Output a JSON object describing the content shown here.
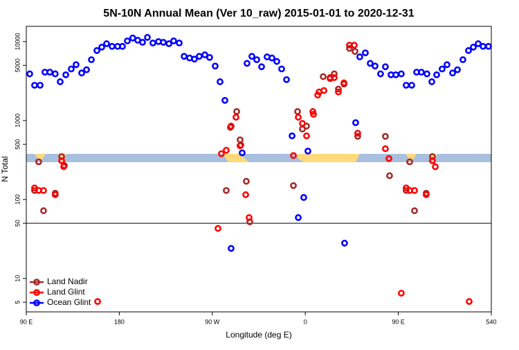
{
  "chart_data": {
    "type": "scatter",
    "title": "5N-10N Annual Mean (Ver 10_raw)   2015-01-01 to 2020-12-31",
    "x_label": "Longitude (deg E)",
    "y_label": "N Total",
    "log_y": true,
    "legend": "bottom-left",
    "hlines": [
      50
    ],
    "xlim": [
      90,
      540
    ],
    "ylim": [
      3.77,
      15600
    ],
    "xticks": [
      {
        "value": 90,
        "label": "90 E"
      },
      180,
      {
        "value": 270,
        "label": "90 W"
      },
      {
        "value": 360,
        "label": "0"
      },
      {
        "value": 450,
        "label": "90 E"
      },
      540
    ],
    "yticks": [
      5,
      10,
      50,
      100,
      500,
      1000,
      5000,
      10000
    ],
    "series": [
      {
        "name": "Land Nadir",
        "color": "#a52a2a",
        "x": [
          102,
          98,
          106.7,
          118,
          124.2,
          126.8,
          283.5,
          287.5,
          293.6,
          296.9,
          297.6,
          302.9,
          306.3,
          348.5,
          352.5,
          357.2,
          361.2,
          377.3,
          384,
          388,
          392,
          397.4,
          402.7,
          408.1,
          410.7,
          437.5,
          441.5,
          461,
          457.6,
          465.7,
          477,
          483
        ],
        "values": [
          300,
          130,
          72,
          120,
          350,
          270,
          130,
          820,
          1300,
          570,
          490,
          170,
          52,
          150,
          1300,
          780,
          850,
          3600,
          3400,
          3900,
          2500,
          2900,
          8200,
          7500,
          630,
          630,
          200,
          300,
          130,
          72,
          120,
          350
        ]
      },
      {
        "name": "Land Glint",
        "color": "#ff0000",
        "x": [
          98,
          102,
          106.7,
          118,
          124.2,
          126.2,
          159,
          275.5,
          278.8,
          283.5,
          288.2,
          292.9,
          296.9,
          302.3,
          305.6,
          348.5,
          353.2,
          357.2,
          361.2,
          367.3,
          367.9,
          372,
          373.3,
          378,
          384,
          388,
          392,
          397.4,
          402.7,
          407.4,
          410.7,
          437.5,
          440.9,
          452.9,
          457.6,
          461,
          465.7,
          477,
          483,
          485.8,
          518.6
        ],
        "values": [
          140,
          130,
          130,
          115,
          310,
          260,
          5.1,
          43,
          380,
          420,
          850,
          1100,
          480,
          115,
          59,
          360,
          1100,
          920,
          640,
          1300,
          1200,
          2100,
          2300,
          2400,
          3500,
          3500,
          2300,
          3000,
          9000,
          9000,
          690,
          440,
          330,
          6.5,
          140,
          130,
          130,
          115,
          310,
          260,
          5.1
        ]
      },
      {
        "name": "Ocean Glint",
        "color": "#0000ff",
        "x": [
          93.3,
          98,
          103.4,
          108,
          112.8,
          118,
          122.8,
          128.2,
          133.5,
          138.2,
          143.6,
          148.3,
          153,
          158.3,
          163,
          167.7,
          173,
          178.4,
          183,
          187.8,
          193,
          197.8,
          202.5,
          207.2,
          212.5,
          217.9,
          222.6,
          228,
          232.6,
          238,
          242.7,
          248,
          252.7,
          257.4,
          262.8,
          267.4,
          272.8,
          277.5,
          282.2,
          288.2,
          298.9,
          303.6,
          308.3,
          313,
          317.7,
          323,
          327.7,
          332.4,
          337.1,
          341.8,
          347.2,
          353.2,
          358.5,
          362.5,
          398,
          408.7,
          412.7,
          418.1,
          422.8,
          427.5,
          432.8,
          437.5,
          442.9,
          447.6,
          452.9,
          457.6,
          463,
          467.7,
          472.3,
          477.7,
          482.4,
          487.1,
          492.4,
          497.1,
          502.5,
          507.2,
          512.5,
          517.9,
          522.6,
          527.3,
          532,
          537.3
        ],
        "values": [
          3900,
          2800,
          2800,
          4100,
          4100,
          3900,
          3100,
          3800,
          4500,
          5100,
          4000,
          4400,
          5900,
          7700,
          8500,
          9400,
          8700,
          8700,
          8700,
          10200,
          11100,
          10400,
          9800,
          11300,
          9600,
          10000,
          9800,
          9400,
          10200,
          9600,
          6500,
          6200,
          6000,
          6500,
          6800,
          6300,
          4900,
          3100,
          1800,
          24,
          390,
          5300,
          6500,
          5900,
          4800,
          6400,
          6200,
          5600,
          4500,
          3300,
          640,
          59,
          106,
          410,
          28,
          940,
          6400,
          7200,
          5300,
          4900,
          3900,
          4800,
          3800,
          3800,
          3900,
          2800,
          2800,
          4100,
          4100,
          3900,
          3100,
          3800,
          4500,
          5100,
          4000,
          4400,
          5900,
          7700,
          8500,
          9400,
          8700,
          8700
        ]
      }
    ]
  }
}
